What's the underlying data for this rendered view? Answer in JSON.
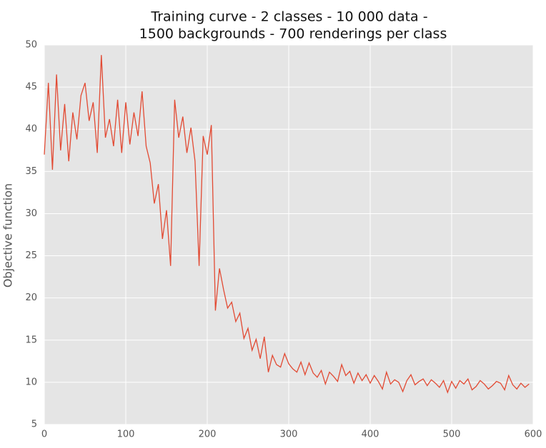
{
  "chart_data": {
    "type": "line",
    "title": [
      "Training curve - 2 classes - 10 000 data -",
      "1500 backgrounds - 700 renderings per class"
    ],
    "y_label": "Objective function",
    "x": [
      0,
      5,
      10,
      15,
      20,
      25,
      30,
      35,
      40,
      45,
      50,
      55,
      60,
      65,
      70,
      75,
      80,
      85,
      90,
      95,
      100,
      105,
      110,
      115,
      120,
      125,
      130,
      135,
      140,
      145,
      150,
      155,
      160,
      165,
      170,
      175,
      180,
      185,
      190,
      195,
      200,
      205,
      210,
      215,
      220,
      225,
      230,
      235,
      240,
      245,
      250,
      255,
      260,
      265,
      270,
      275,
      280,
      285,
      290,
      295,
      300,
      305,
      310,
      315,
      320,
      325,
      330,
      335,
      340,
      345,
      350,
      355,
      360,
      365,
      370,
      375,
      380,
      385,
      390,
      395,
      400,
      405,
      410,
      415,
      420,
      425,
      430,
      435,
      440,
      445,
      450,
      455,
      460,
      465,
      470,
      475,
      480,
      485,
      490,
      495,
      500,
      505,
      510,
      515,
      520,
      525,
      530,
      535,
      540,
      545,
      550,
      555,
      560,
      565,
      570,
      575,
      580,
      585,
      590,
      595
    ],
    "series": [
      {
        "name": "objective",
        "color": "#e24a33",
        "values": [
          37,
          45.5,
          35.2,
          46.5,
          37.5,
          43,
          36.2,
          42,
          38.8,
          44,
          45.5,
          41,
          43.2,
          37.2,
          48.8,
          39,
          41.2,
          38,
          43.5,
          37.2,
          43.2,
          38.2,
          42,
          39.2,
          44.5,
          38,
          36,
          31.2,
          33.5,
          27,
          30.4,
          23.8,
          43.5,
          39,
          41.5,
          37.2,
          40.2,
          36.2,
          23.8,
          39.2,
          37,
          40.5,
          18.5,
          23.5,
          21,
          18.8,
          19.5,
          17.2,
          18.2,
          15.2,
          16.4,
          13.8,
          15.1,
          12.8,
          15.4,
          11.2,
          13.2,
          12.1,
          11.8,
          13.4,
          12.2,
          11.6,
          11.2,
          12.4,
          10.9,
          12.3,
          11.1,
          10.6,
          11.4,
          9.8,
          11.2,
          10.7,
          10.1,
          12.1,
          10.8,
          11.3,
          9.9,
          11.1,
          10.2,
          10.9,
          9.9,
          10.8,
          10.1,
          9.2,
          11.2,
          9.8,
          10.3,
          10,
          8.9,
          10.2,
          10.9,
          9.7,
          10.1,
          10.4,
          9.6,
          10.3,
          9.9,
          9.4,
          10.2,
          8.8,
          10.1,
          9.3,
          10.2,
          9.8,
          10.4,
          9.1,
          9.5,
          10.2,
          9.8,
          9.2,
          9.6,
          10.1,
          9.9,
          9.1,
          10.8,
          9.7,
          9.2,
          9.9,
          9.4,
          9.8
        ]
      }
    ],
    "xlim": [
      0,
      600
    ],
    "xticks": [
      0,
      100,
      200,
      300,
      400,
      500,
      600
    ],
    "ylim": [
      5,
      50
    ],
    "yticks": [
      5,
      10,
      15,
      20,
      25,
      30,
      35,
      40,
      45,
      50
    ],
    "grid": true,
    "background": "#e5e5e5"
  }
}
